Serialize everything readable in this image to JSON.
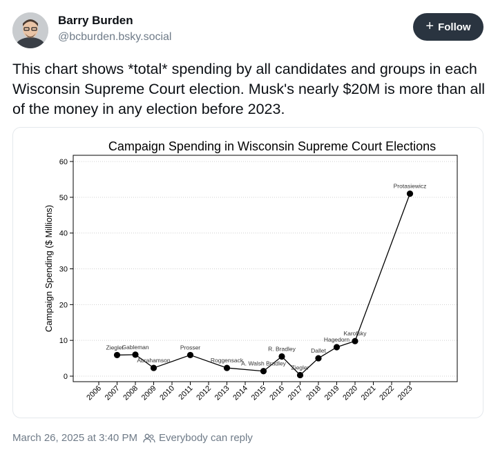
{
  "author": {
    "name": "Barry Burden",
    "handle": "@bcburden.bsky.social"
  },
  "follow_button": {
    "label": "Follow",
    "icon": "plus-icon"
  },
  "post": {
    "text": "This chart shows *total* spending by all candidates and groups in each Wisconsin Supreme Court election. Musk's nearly $20M is more than all of the money in any election before 2023."
  },
  "footer": {
    "timestamp": "March 26, 2025 at 3:40 PM",
    "reply_setting": "Everybody can reply",
    "reply_icon": "people-icon"
  },
  "colors": {
    "follow_bg": "#2a3440",
    "muted_text": "#6f7b88",
    "card_border": "#e4e8ec"
  },
  "chart_data": {
    "type": "line",
    "title": "Campaign Spending in Wisconsin Supreme Court Elections",
    "xlabel": "",
    "ylabel": "Campaign Spending ($ Millions)",
    "ylim": [
      0,
      60
    ],
    "yticks": [
      0,
      10,
      20,
      30,
      40,
      50,
      60
    ],
    "xticks": [
      "2006",
      "2007",
      "2008",
      "2009",
      "2010",
      "2011",
      "2012",
      "2013",
      "2014",
      "2015",
      "2016",
      "2017",
      "2018",
      "2019",
      "2020",
      "2021",
      "2022",
      "2023"
    ],
    "grid": "horizontal dotted",
    "points": [
      {
        "x": 2007,
        "y": 5.9,
        "label": "Ziegler"
      },
      {
        "x": 2008,
        "y": 6.0,
        "label": "Gableman"
      },
      {
        "x": 2009,
        "y": 2.3,
        "label": "Abrahamson"
      },
      {
        "x": 2011,
        "y": 5.9,
        "label": "Prosser"
      },
      {
        "x": 2013,
        "y": 2.3,
        "label": "Roggensack"
      },
      {
        "x": 2015,
        "y": 1.4,
        "label": "A. Walsh Bradley"
      },
      {
        "x": 2016,
        "y": 5.5,
        "label": "R. Bradley"
      },
      {
        "x": 2017,
        "y": 0.3,
        "label": "Ziegler"
      },
      {
        "x": 2018,
        "y": 5.0,
        "label": "Dallet"
      },
      {
        "x": 2019,
        "y": 8.1,
        "label": "Hagedorn"
      },
      {
        "x": 2020,
        "y": 9.8,
        "label": "Karofsky"
      },
      {
        "x": 2023,
        "y": 51.0,
        "label": "Protasiewicz"
      }
    ]
  }
}
